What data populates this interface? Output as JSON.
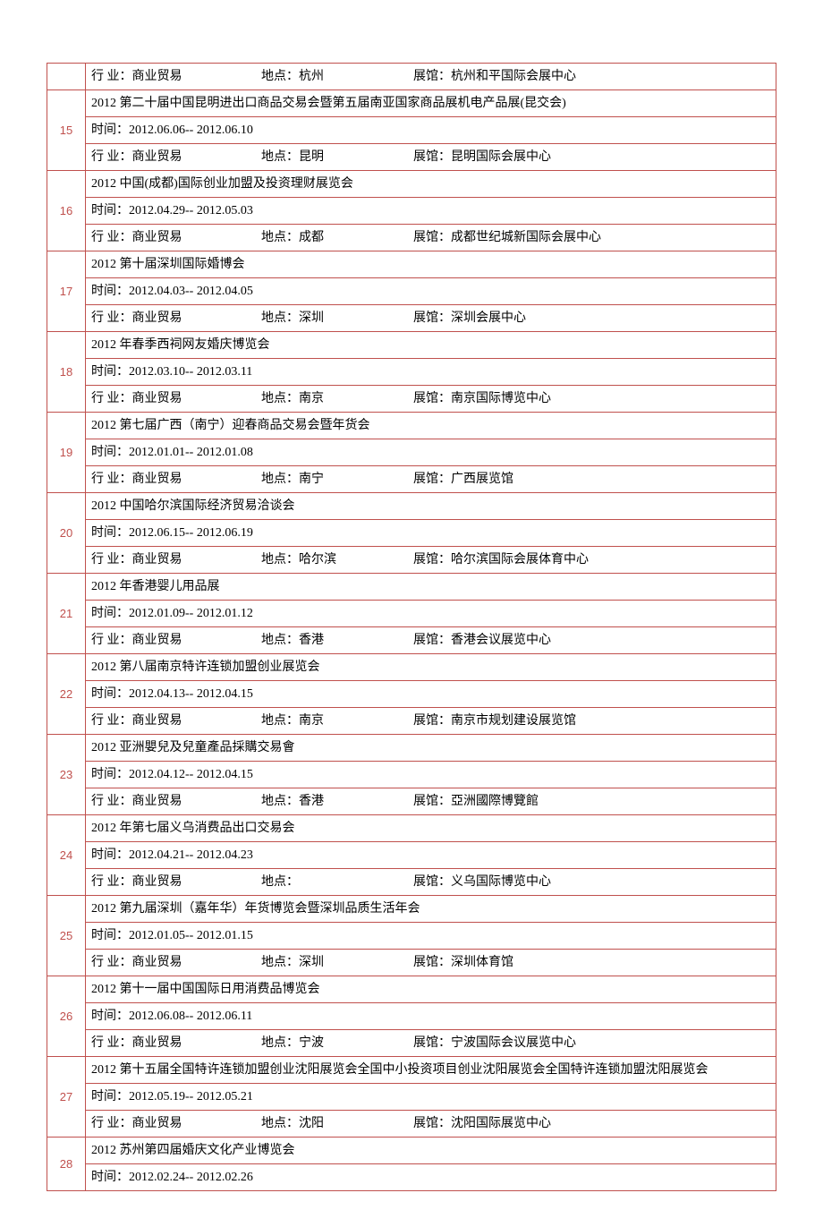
{
  "colors": {
    "border": "#c0504d",
    "index_text": "#c0504d",
    "body_text": "#000000",
    "background": "#ffffff"
  },
  "labels": {
    "industry": "行 业：",
    "location": "地点：",
    "venue": "展馆：",
    "time": "时间："
  },
  "first_row": {
    "industry": "商业贸易",
    "location": "杭州",
    "venue": "杭州和平国际会展中心"
  },
  "items": [
    {
      "idx": "15",
      "title": "2012 第二十届中国昆明进出口商品交易会暨第五届南亚国家商品展机电产品展(昆交会)",
      "time": "2012.06.06-- 2012.06.10",
      "industry": "商业贸易",
      "location": "昆明",
      "venue": "昆明国际会展中心"
    },
    {
      "idx": "16",
      "title": "2012 中国(成都)国际创业加盟及投资理财展览会",
      "time": "2012.04.29-- 2012.05.03",
      "industry": "商业贸易",
      "location": "成都",
      "venue": "成都世纪城新国际会展中心"
    },
    {
      "idx": "17",
      "title": "2012 第十届深圳国际婚博会",
      "time": "2012.04.03-- 2012.04.05",
      "industry": "商业贸易",
      "location": "深圳",
      "venue": "深圳会展中心"
    },
    {
      "idx": "18",
      "title": "2012 年春季西祠网友婚庆博览会",
      "time": "2012.03.10-- 2012.03.11",
      "industry": "商业贸易",
      "location": "南京",
      "venue": "南京国际博览中心"
    },
    {
      "idx": "19",
      "title": "2012 第七届广西（南宁）迎春商品交易会暨年货会",
      "time": "2012.01.01-- 2012.01.08",
      "industry": "商业贸易",
      "location": "南宁",
      "venue": "广西展览馆"
    },
    {
      "idx": "20",
      "title": "2012 中国哈尔滨国际经济贸易洽谈会",
      "time": "2012.06.15-- 2012.06.19",
      "industry": "商业贸易",
      "location": "哈尔滨",
      "venue": "哈尔滨国际会展体育中心"
    },
    {
      "idx": "21",
      "title": "2012 年香港婴儿用品展",
      "time": "2012.01.09-- 2012.01.12",
      "industry": "商业贸易",
      "location": "香港",
      "venue": "香港会议展览中心"
    },
    {
      "idx": "22",
      "title": "2012 第八届南京特许连锁加盟创业展览会",
      "time": "2012.04.13-- 2012.04.15",
      "industry": "商业贸易",
      "location": "南京",
      "venue": "南京市规划建设展览馆"
    },
    {
      "idx": "23",
      "title": "2012 亚洲嬰兒及兒童產品採購交易會",
      "time": "2012.04.12-- 2012.04.15",
      "industry": "商业贸易",
      "location": "香港",
      "venue": "亞洲國際博覽館"
    },
    {
      "idx": "24",
      "title": "2012 年第七届义乌消费品出口交易会",
      "time": "2012.04.21-- 2012.04.23",
      "industry": "商业贸易",
      "location": "",
      "venue": "义乌国际博览中心"
    },
    {
      "idx": "25",
      "title": "2012 第九届深圳（嘉年华）年货博览会暨深圳品质生活年会",
      "time": "2012.01.05-- 2012.01.15",
      "industry": "商业贸易",
      "location": "深圳",
      "venue": "深圳体育馆"
    },
    {
      "idx": "26",
      "title": "2012 第十一届中国国际日用消费品博览会",
      "time": "2012.06.08-- 2012.06.11",
      "industry": "商业贸易",
      "location": "宁波",
      "venue": "宁波国际会议展览中心"
    },
    {
      "idx": "27",
      "title": "2012 第十五届全国特许连锁加盟创业沈阳展览会全国中小投资项目创业沈阳展览会全国特许连锁加盟沈阳展览会",
      "time": "2012.05.19-- 2012.05.21",
      "industry": "商业贸易",
      "location": "沈阳",
      "venue": "沈阳国际展览中心"
    }
  ],
  "last_partial": {
    "idx": "28",
    "title": "2012 苏州第四届婚庆文化产业博览会",
    "time": "2012.02.24-- 2012.02.26"
  }
}
